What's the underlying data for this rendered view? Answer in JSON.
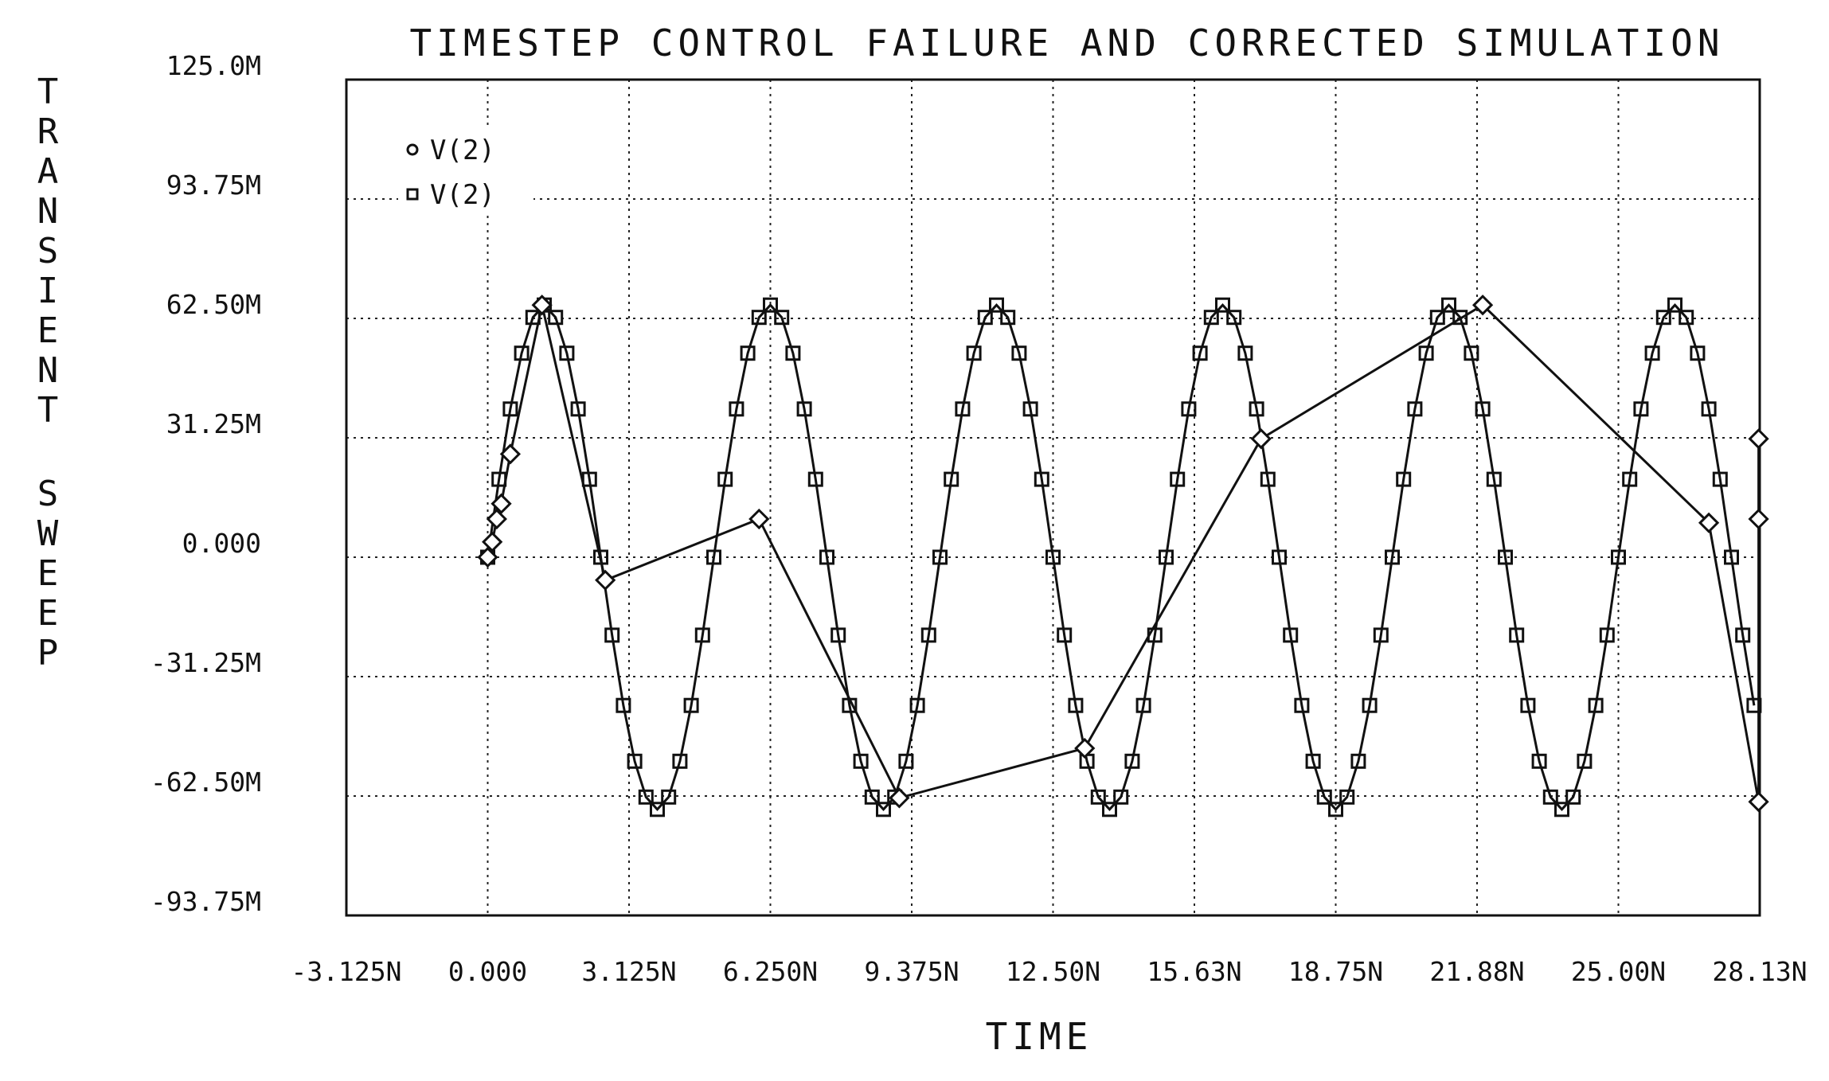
{
  "chart_data": {
    "type": "line",
    "title": "TIMESTEP CONTROL FAILURE AND CORRECTED SIMULATION",
    "xlabel": "TIME",
    "ylabel": "TRANSIENT SWEEP",
    "xlim": [
      -3.125e-09,
      2.8125e-08
    ],
    "ylim": [
      -0.09375,
      0.125
    ],
    "x_tick_labels": [
      "-3.125N",
      "0.000",
      "3.125N",
      "6.250N",
      "9.375N",
      "12.50N",
      "15.63N",
      "18.75N",
      "21.88N",
      "25.00N",
      "28.13N"
    ],
    "y_tick_labels": [
      "125.0M",
      "93.75M",
      "62.50M",
      "31.25M",
      "0.000",
      "-31.25M",
      "-62.50M",
      "-93.75M"
    ],
    "grid": true,
    "legend_position": "top-left",
    "series": [
      {
        "name": "V(2)",
        "marker": "diamond",
        "x": [
          0,
          1e-10,
          2e-10,
          3e-10,
          5e-10,
          1.2e-09,
          2.6e-09,
          6e-09,
          9.1e-09,
          1.32e-08,
          1.71e-08,
          2.2e-08,
          2.7e-08,
          2.81e-08,
          2.81e-08,
          2.81e-08
        ],
        "y": [
          0,
          0.004,
          0.01,
          0.014,
          0.027,
          0.066,
          -0.006,
          0.01,
          -0.063,
          -0.05,
          0.031,
          0.066,
          0.009,
          -0.064,
          0.01,
          0.031
        ]
      },
      {
        "name": "V(2)",
        "marker": "square",
        "type": "sine",
        "amplitude": 0.066,
        "period": 5e-09,
        "x_start": 0,
        "x_end": 2.8125e-08,
        "sample_step": 2.5e-10
      }
    ]
  }
}
